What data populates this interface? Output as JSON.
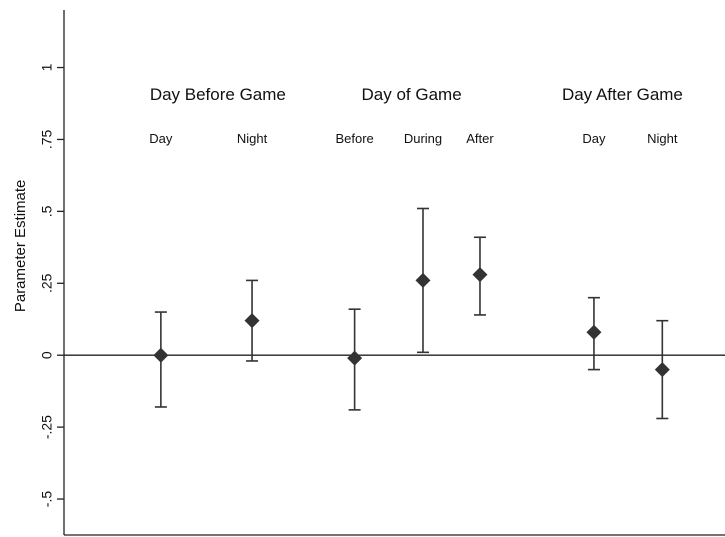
{
  "chart_data": {
    "type": "scatter",
    "title": "",
    "xlabel": "",
    "ylabel": "Parameter Estimate",
    "ylim": [
      -0.625,
      1.2
    ],
    "yticks": [
      {
        "value": 1,
        "label": "1"
      },
      {
        "value": 0.75,
        "label": ".75"
      },
      {
        "value": 0.5,
        "label": ".5"
      },
      {
        "value": 0.25,
        "label": ".25"
      },
      {
        "value": 0,
        "label": "0"
      },
      {
        "value": -0.25,
        "label": "-.25"
      },
      {
        "value": -0.5,
        "label": "-.5"
      }
    ],
    "reference_line": 0,
    "grid": false,
    "groups": [
      {
        "label": "Day Before Game",
        "center": 2
      },
      {
        "label": "Day of Game",
        "center": 5.4
      },
      {
        "label": "Day After Game",
        "center": 9.1
      }
    ],
    "points": [
      {
        "x": 1,
        "label": "Day",
        "estimate": 0.0,
        "lower": -0.18,
        "upper": 0.15
      },
      {
        "x": 2.6,
        "label": "Night",
        "estimate": 0.12,
        "lower": -0.02,
        "upper": 0.26
      },
      {
        "x": 4.4,
        "label": "Before",
        "estimate": -0.01,
        "lower": -0.19,
        "upper": 0.16
      },
      {
        "x": 5.6,
        "label": "During",
        "estimate": 0.26,
        "lower": 0.01,
        "upper": 0.51
      },
      {
        "x": 6.6,
        "label": "After",
        "estimate": 0.28,
        "lower": 0.14,
        "upper": 0.41
      },
      {
        "x": 8.6,
        "label": "Day",
        "estimate": 0.08,
        "lower": -0.05,
        "upper": 0.2
      },
      {
        "x": 9.8,
        "label": "Night",
        "estimate": -0.05,
        "lower": -0.22,
        "upper": 0.12
      }
    ],
    "xlim": [
      -0.7,
      10.9
    ]
  }
}
